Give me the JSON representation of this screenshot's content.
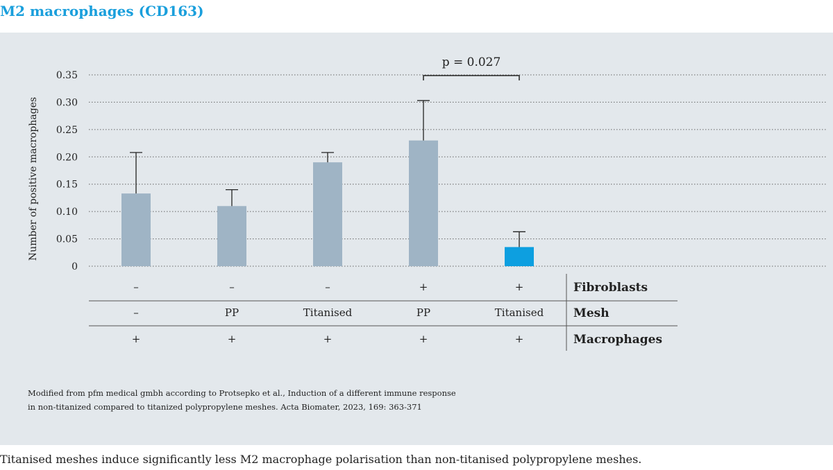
{
  "page": {
    "title": "M2 macrophages (CD163)",
    "caption": "Titanised meshes induce significantly less M2 macrophage polarisation than non-titanised polypropylene meshes.",
    "source_lines": [
      "Modified from pfm medical gmbh according to Protsepko et al., Induction of a different immune response",
      "in non-titanized compared to titanized polypropylene meshes. Acta Biomater, 2023, 169: 363-371"
    ]
  },
  "colors": {
    "title": "#1a9fdc",
    "panel_bg": "#e3e8ec",
    "bar_default": "#9fb4c5",
    "bar_highlight": "#0d9fe0",
    "grid": "#666666"
  },
  "chart_data": {
    "type": "bar",
    "ylabel": "Number of positive macrophages",
    "ylim": [
      0,
      0.35
    ],
    "yticks": [
      {
        "value": 0,
        "label": "0"
      },
      {
        "value": 0.05,
        "label": "0.05"
      },
      {
        "value": 0.1,
        "label": "0.10"
      },
      {
        "value": 0.15,
        "label": "0.15"
      },
      {
        "value": 0.2,
        "label": "0.20"
      },
      {
        "value": 0.25,
        "label": "0.25"
      },
      {
        "value": 0.3,
        "label": "0.30"
      },
      {
        "value": 0.35,
        "label": "0.35"
      }
    ],
    "grid": true,
    "bars": [
      {
        "value": 0.133,
        "error": 0.075,
        "highlight": false
      },
      {
        "value": 0.11,
        "error": 0.03,
        "highlight": false
      },
      {
        "value": 0.19,
        "error": 0.018,
        "highlight": false
      },
      {
        "value": 0.23,
        "error": 0.073,
        "highlight": false
      },
      {
        "value": 0.035,
        "error": 0.028,
        "highlight": true
      }
    ],
    "annotation": {
      "text": "p = 0.027",
      "from_bar": 3,
      "to_bar": 4
    },
    "conditions": [
      {
        "label": "Fibroblasts",
        "values": [
          "–",
          "–",
          "–",
          "+",
          "+"
        ]
      },
      {
        "label": "Mesh",
        "values": [
          "–",
          "PP",
          "Titanised",
          "PP",
          "Titanised"
        ]
      },
      {
        "label": "Macrophages",
        "values": [
          "+",
          "+",
          "+",
          "+",
          "+"
        ]
      }
    ]
  }
}
